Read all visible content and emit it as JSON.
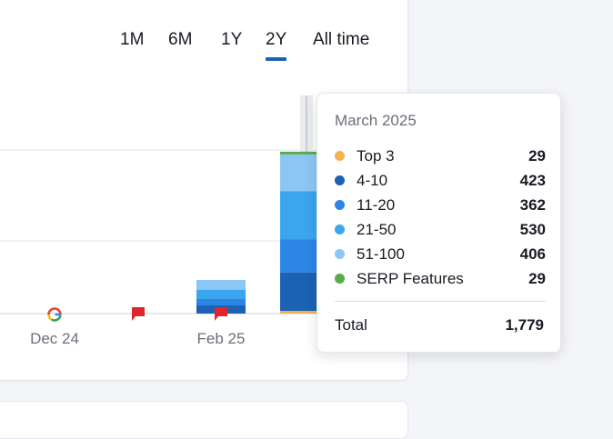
{
  "time_ranges": [
    {
      "label": "1M",
      "active": false
    },
    {
      "label": "6M",
      "active": false
    },
    {
      "label": "1Y",
      "active": false
    },
    {
      "label": "2Y",
      "active": true
    },
    {
      "label": "All time",
      "active": false
    }
  ],
  "colors": {
    "top3": "#f3b24d",
    "r4_10": "#1b62b3",
    "r11_20": "#2b86e5",
    "r21_50": "#3aa6ee",
    "r51_100": "#8cc6f5",
    "serp": "#5aab45",
    "accent": "#1b62b3",
    "flag": "#e0262b"
  },
  "chart_data": {
    "type": "bar",
    "stacked": true,
    "categories": [
      "",
      "Dec 24",
      "",
      "Feb 25",
      "March 2025"
    ],
    "x_tick_labels": [
      "Dec 24",
      "Feb 25"
    ],
    "series": [
      {
        "name": "Top 3",
        "values": [
          0,
          0,
          0,
          0,
          29
        ]
      },
      {
        "name": "4-10",
        "values": [
          0,
          0,
          0,
          90,
          423
        ]
      },
      {
        "name": "11-20",
        "values": [
          0,
          0,
          0,
          70,
          362
        ]
      },
      {
        "name": "21-50",
        "values": [
          0,
          0,
          0,
          100,
          530
        ]
      },
      {
        "name": "51-100",
        "values": [
          0,
          0,
          0,
          110,
          406
        ]
      },
      {
        "name": "SERP Features",
        "values": [
          0,
          0,
          0,
          0,
          29
        ]
      }
    ],
    "ylim": [
      0,
      2400
    ],
    "grid": true,
    "markers": [
      {
        "type": "google-update",
        "category": "Dec 24"
      },
      {
        "type": "note-flag",
        "category_index": 2
      },
      {
        "type": "note-flag",
        "category": "Feb 25"
      }
    ],
    "tooltip": {
      "title": "March 2025",
      "rows": [
        {
          "label": "Top 3",
          "value": "29",
          "color": "#f3b24d"
        },
        {
          "label": "4-10",
          "value": "423",
          "color": "#1b62b3"
        },
        {
          "label": "11-20",
          "value": "362",
          "color": "#2b86e5"
        },
        {
          "label": "21-50",
          "value": "530",
          "color": "#3aa6ee"
        },
        {
          "label": "51-100",
          "value": "406",
          "color": "#8cc6f5"
        },
        {
          "label": "SERP Features",
          "value": "29",
          "color": "#5aab45"
        }
      ],
      "total_label": "Total",
      "total_value": "1,779"
    }
  }
}
